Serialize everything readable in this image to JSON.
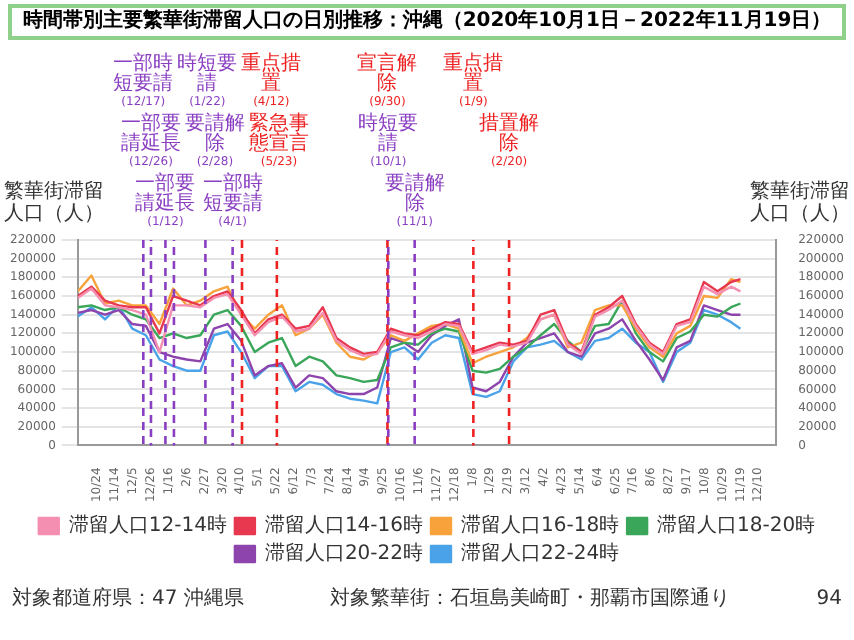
{
  "chart_data": {
    "type": "line",
    "title": "時間帯別主要繁華街滞留人口の日別推移：沖縄（2020年10月1日－2022年11月19日）",
    "ylabel": "繁華街滞留人口（人）",
    "y2label": "繁華街滞留人口（人）",
    "x": [
      "2020-10-01",
      "2020-10-17",
      "2020-11-02",
      "2020-11-18",
      "2020-12-04",
      "2020-12-20",
      "2021-01-05",
      "2021-01-21",
      "2021-02-06",
      "2021-02-22",
      "2021-03-10",
      "2021-03-26",
      "2021-04-11",
      "2021-04-27",
      "2021-05-13",
      "2021-05-29",
      "2021-06-14",
      "2021-06-30",
      "2021-07-16",
      "2021-08-01",
      "2021-08-17",
      "2021-09-02",
      "2021-09-18",
      "2021-10-04",
      "2021-10-20",
      "2021-11-05",
      "2021-11-21",
      "2021-12-07",
      "2021-12-23",
      "2022-01-08",
      "2022-01-24",
      "2022-02-09",
      "2022-02-25",
      "2022-03-13",
      "2022-03-29",
      "2022-04-14",
      "2022-04-30",
      "2022-05-16",
      "2022-06-01",
      "2022-06-17",
      "2022-07-03",
      "2022-07-19",
      "2022-08-04",
      "2022-08-20",
      "2022-09-05",
      "2022-09-21",
      "2022-10-07",
      "2022-10-23",
      "2022-11-08",
      "2022-11-19"
    ],
    "series": [
      {
        "name": "滞留人口12-14時",
        "color": "#f48fb1",
        "values": [
          158000,
          168000,
          150000,
          148000,
          145000,
          140000,
          100000,
          150000,
          150000,
          148000,
          158000,
          162000,
          140000,
          118000,
          132000,
          138000,
          122000,
          125000,
          142000,
          112000,
          102000,
          96000,
          98000,
          122000,
          118000,
          115000,
          122000,
          130000,
          128000,
          98000,
          102000,
          108000,
          106000,
          110000,
          135000,
          140000,
          108000,
          98000,
          138000,
          145000,
          155000,
          128000,
          108000,
          98000,
          128000,
          132000,
          170000,
          162000,
          170000,
          165000
        ]
      },
      {
        "name": "滞留人口14-16時",
        "color": "#e8384f",
        "values": [
          160000,
          170000,
          155000,
          150000,
          148000,
          148000,
          120000,
          160000,
          155000,
          150000,
          160000,
          165000,
          145000,
          120000,
          135000,
          140000,
          125000,
          128000,
          148000,
          115000,
          105000,
          98000,
          100000,
          125000,
          120000,
          118000,
          125000,
          132000,
          130000,
          100000,
          105000,
          110000,
          108000,
          112000,
          140000,
          145000,
          110000,
          100000,
          140000,
          148000,
          160000,
          130000,
          110000,
          100000,
          130000,
          135000,
          175000,
          165000,
          175000,
          178000
        ]
      },
      {
        "name": "滞留人口16-18時",
        "color": "#f7a23b",
        "values": [
          165000,
          182000,
          152000,
          155000,
          150000,
          150000,
          130000,
          168000,
          150000,
          155000,
          165000,
          170000,
          140000,
          125000,
          140000,
          150000,
          118000,
          125000,
          140000,
          110000,
          95000,
          92000,
          100000,
          118000,
          112000,
          120000,
          128000,
          130000,
          125000,
          88000,
          95000,
          100000,
          105000,
          115000,
          135000,
          140000,
          105000,
          110000,
          145000,
          150000,
          150000,
          125000,
          105000,
          95000,
          120000,
          128000,
          160000,
          158000,
          178000,
          175000
        ]
      },
      {
        "name": "滞留人口18-20時",
        "color": "#3aa65a",
        "values": [
          148000,
          150000,
          145000,
          148000,
          140000,
          135000,
          115000,
          120000,
          115000,
          118000,
          140000,
          145000,
          128000,
          100000,
          110000,
          115000,
          85000,
          95000,
          90000,
          75000,
          72000,
          68000,
          70000,
          105000,
          110000,
          108000,
          120000,
          125000,
          122000,
          80000,
          78000,
          82000,
          95000,
          105000,
          118000,
          130000,
          112000,
          100000,
          128000,
          130000,
          155000,
          120000,
          100000,
          90000,
          115000,
          122000,
          140000,
          138000,
          148000,
          152000
        ]
      },
      {
        "name": "滞留人口20-22時",
        "color": "#8e44ad",
        "values": [
          142000,
          145000,
          140000,
          145000,
          130000,
          128000,
          100000,
          95000,
          92000,
          90000,
          125000,
          130000,
          112000,
          75000,
          85000,
          88000,
          62000,
          75000,
          72000,
          58000,
          55000,
          55000,
          62000,
          115000,
          110000,
          100000,
          118000,
          128000,
          135000,
          62000,
          58000,
          68000,
          95000,
          110000,
          115000,
          120000,
          100000,
          95000,
          120000,
          125000,
          135000,
          112000,
          92000,
          70000,
          105000,
          112000,
          150000,
          145000,
          140000,
          140000
        ]
      },
      {
        "name": "滞留人口22-24時",
        "color": "#4aa3e8",
        "values": [
          138000,
          148000,
          135000,
          150000,
          125000,
          118000,
          92000,
          85000,
          80000,
          80000,
          118000,
          122000,
          100000,
          72000,
          85000,
          85000,
          58000,
          68000,
          65000,
          55000,
          50000,
          48000,
          45000,
          100000,
          105000,
          92000,
          110000,
          118000,
          115000,
          55000,
          52000,
          58000,
          90000,
          105000,
          108000,
          112000,
          100000,
          92000,
          112000,
          115000,
          125000,
          110000,
          100000,
          68000,
          100000,
          110000,
          145000,
          140000,
          132000,
          125000
        ]
      }
    ],
    "xlim": [
      "2020-10-01",
      "2022-12-31"
    ],
    "xticks": [
      {
        "value": "2020-10-24",
        "label": "10/24"
      },
      {
        "value": "2020-11-14",
        "label": "11/14"
      },
      {
        "value": "2020-12-05",
        "label": "12/5"
      },
      {
        "value": "2020-12-26",
        "label": "12/26"
      },
      {
        "value": "2021-01-16",
        "label": "1/16"
      },
      {
        "value": "2021-02-06",
        "label": "2/6"
      },
      {
        "value": "2021-02-27",
        "label": "2/27"
      },
      {
        "value": "2021-03-20",
        "label": "3/20"
      },
      {
        "value": "2021-04-10",
        "label": "4/10"
      },
      {
        "value": "2021-05-01",
        "label": "5/1"
      },
      {
        "value": "2021-05-22",
        "label": "5/22"
      },
      {
        "value": "2021-06-12",
        "label": "6/12"
      },
      {
        "value": "2021-07-03",
        "label": "7/3"
      },
      {
        "value": "2021-07-24",
        "label": "7/24"
      },
      {
        "value": "2021-08-14",
        "label": "8/14"
      },
      {
        "value": "2021-09-04",
        "label": "9/4"
      },
      {
        "value": "2021-09-25",
        "label": "9/25"
      },
      {
        "value": "2021-10-16",
        "label": "10/16"
      },
      {
        "value": "2021-11-06",
        "label": "11/6"
      },
      {
        "value": "2021-11-27",
        "label": "11/27"
      },
      {
        "value": "2021-12-18",
        "label": "12/18"
      },
      {
        "value": "2022-01-08",
        "label": "1/8"
      },
      {
        "value": "2022-01-29",
        "label": "1/29"
      },
      {
        "value": "2022-02-19",
        "label": "2/19"
      },
      {
        "value": "2022-03-12",
        "label": "3/12"
      },
      {
        "value": "2022-04-02",
        "label": "4/2"
      },
      {
        "value": "2022-04-23",
        "label": "4/23"
      },
      {
        "value": "2022-05-14",
        "label": "5/14"
      },
      {
        "value": "2022-06-04",
        "label": "6/4"
      },
      {
        "value": "2022-06-25",
        "label": "6/25"
      },
      {
        "value": "2022-07-16",
        "label": "7/16"
      },
      {
        "value": "2022-08-06",
        "label": "8/6"
      },
      {
        "value": "2022-08-27",
        "label": "8/27"
      },
      {
        "value": "2022-09-17",
        "label": "9/17"
      },
      {
        "value": "2022-10-08",
        "label": "10/8"
      },
      {
        "value": "2022-10-29",
        "label": "10/29"
      },
      {
        "value": "2022-11-19",
        "label": "11/19"
      },
      {
        "value": "2022-12-10",
        "label": "12/10"
      }
    ],
    "ylim": [
      0,
      220000
    ],
    "yticks": [
      0,
      20000,
      40000,
      60000,
      80000,
      100000,
      120000,
      140000,
      160000,
      180000,
      200000,
      220000
    ],
    "y2lim": [
      0,
      220000
    ],
    "y2ticks": [
      0,
      20000,
      40000,
      60000,
      80000,
      100000,
      120000,
      140000,
      160000,
      180000,
      200000,
      220000
    ],
    "ref_lines": [
      {
        "axis": "x",
        "value": "2020-12-17",
        "label": "一部時短要請 (12/17)",
        "color": "#8a3fc2",
        "line_style": "dashed"
      },
      {
        "axis": "x",
        "value": "2020-12-26",
        "label": "一部要請延長 (12/26)",
        "color": "#8a3fc2",
        "line_style": "dashed"
      },
      {
        "axis": "x",
        "value": "2021-01-12",
        "label": "一部要請延長 (1/12)",
        "color": "#8a3fc2",
        "line_style": "dashed"
      },
      {
        "axis": "x",
        "value": "2021-01-22",
        "label": "時短要請 (1/22)",
        "color": "#8a3fc2",
        "line_style": "dashed"
      },
      {
        "axis": "x",
        "value": "2021-02-28",
        "label": "要請解除 (2/28)",
        "color": "#8a3fc2",
        "line_style": "dashed"
      },
      {
        "axis": "x",
        "value": "2021-04-01",
        "label": "一部時短要請 (4/1)",
        "color": "#8a3fc2",
        "line_style": "dashed"
      },
      {
        "axis": "x",
        "value": "2021-04-12",
        "label": "重点措置 (4/12)",
        "color": "#ee2222",
        "line_style": "dashed"
      },
      {
        "axis": "x",
        "value": "2021-05-23",
        "label": "緊急事態宣言 (5/23)",
        "color": "#ee2222",
        "line_style": "dashed"
      },
      {
        "axis": "x",
        "value": "2021-09-30",
        "label": "宣言解除 (9/30)",
        "color": "#ee2222",
        "line_style": "dashed"
      },
      {
        "axis": "x",
        "value": "2021-10-01",
        "label": "時短要請 (10/1)",
        "color": "#8a3fc2",
        "line_style": "dashed"
      },
      {
        "axis": "x",
        "value": "2021-11-01",
        "label": "要請解除 (11/1)",
        "color": "#8a3fc2",
        "line_style": "dashed"
      },
      {
        "axis": "x",
        "value": "2022-01-09",
        "label": "重点措置 (1/9)",
        "color": "#ee2222",
        "line_style": "dashed"
      },
      {
        "axis": "x",
        "value": "2022-02-20",
        "label": "措置解除 (2/20)",
        "color": "#ee2222",
        "line_style": "dashed"
      }
    ],
    "annotations": [
      "対象都道府県：47 沖縄県",
      "対象繁華街：石垣島美崎町・那覇市国際通り",
      "94"
    ],
    "grid": "y",
    "legend": "bottom",
    "line_style": "solid"
  }
}
